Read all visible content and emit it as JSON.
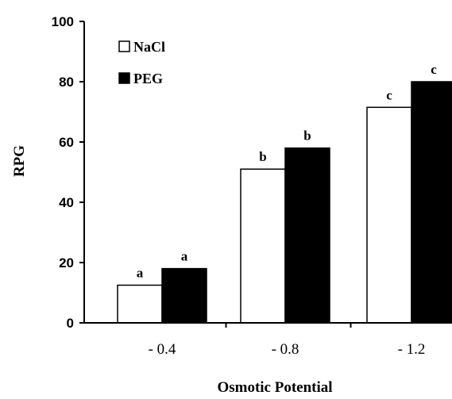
{
  "chart_data": {
    "type": "bar",
    "title": "",
    "xlabel": "Osmotic Potential",
    "ylabel": "RPG",
    "ylim": [
      0,
      100
    ],
    "yticks": [
      0,
      20,
      40,
      60,
      80,
      100
    ],
    "categories": [
      "- 0.4",
      "- 0.8",
      "- 1.2"
    ],
    "series": [
      {
        "name": "NaCl",
        "color": "#ffffff",
        "values": [
          12.5,
          51,
          71.5
        ],
        "labels": [
          "a",
          "b",
          "c"
        ]
      },
      {
        "name": "PEG",
        "color": "#000000",
        "values": [
          18,
          58,
          80
        ],
        "labels": [
          "a",
          "b",
          "c"
        ]
      }
    ],
    "legend": "top-left",
    "grid": false
  }
}
